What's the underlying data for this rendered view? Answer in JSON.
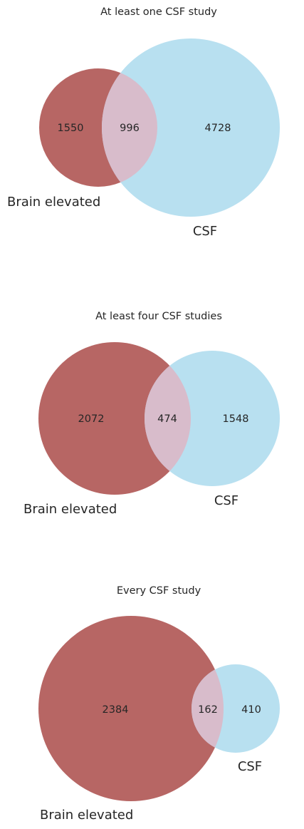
{
  "colors": {
    "brain": "#b76664",
    "csf": "#b8e0f0",
    "overlap": "#d8bccb"
  },
  "panels": [
    {
      "title": "At least one CSF study",
      "set_a_label": "Brain elevated",
      "set_b_label": "CSF",
      "only_a": "1550",
      "both": "996",
      "only_b": "4728"
    },
    {
      "title": "At least four CSF studies",
      "set_a_label": "Brain elevated",
      "set_b_label": "CSF",
      "only_a": "2072",
      "both": "474",
      "only_b": "1548"
    },
    {
      "title": "Every CSF study",
      "set_a_label": "Brain elevated",
      "set_b_label": "CSF",
      "only_a": "2384",
      "both": "162",
      "only_b": "410"
    }
  ]
}
